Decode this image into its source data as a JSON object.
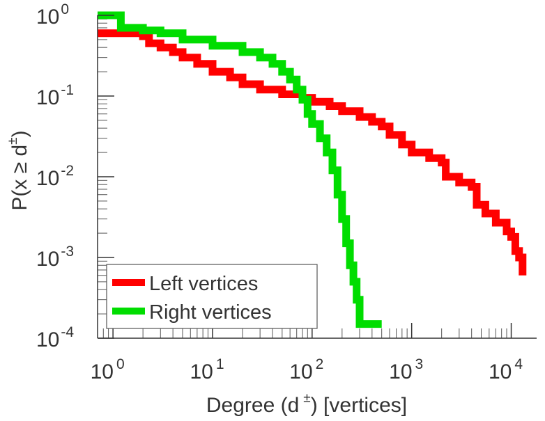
{
  "chart_data": {
    "type": "line",
    "xscale": "log",
    "yscale": "log",
    "xlim": [
      0.7,
      18000
    ],
    "ylim": [
      0.0001,
      1
    ],
    "x_ticks": [
      {
        "base": "10",
        "exp": "0"
      },
      {
        "base": "10",
        "exp": "1"
      },
      {
        "base": "10",
        "exp": "2"
      },
      {
        "base": "10",
        "exp": "3"
      },
      {
        "base": "10",
        "exp": "4"
      }
    ],
    "y_ticks": [
      {
        "base": "10",
        "exp": "0"
      },
      {
        "base": "10",
        "exp": "-1"
      },
      {
        "base": "10",
        "exp": "-2"
      },
      {
        "base": "10",
        "exp": "-3"
      },
      {
        "base": "10",
        "exp": "-4"
      }
    ],
    "xlabel": {
      "pre": "Degree (d",
      "sup": "±",
      "post": ") [vertices]"
    },
    "ylabel": {
      "pre": "P(x ≥ d",
      "sup": "±",
      "post": ")"
    },
    "legend_position": "bottom-left",
    "series": [
      {
        "name": "Left vertices",
        "color": "#ff0000",
        "points": [
          [
            0.7,
            0.6
          ],
          [
            1.3,
            0.6
          ],
          [
            2,
            0.55
          ],
          [
            2.3,
            0.45
          ],
          [
            3,
            0.4
          ],
          [
            4,
            0.35
          ],
          [
            5,
            0.3
          ],
          [
            7,
            0.25
          ],
          [
            10,
            0.2
          ],
          [
            15,
            0.17
          ],
          [
            20,
            0.14
          ],
          [
            30,
            0.12
          ],
          [
            50,
            0.105
          ],
          [
            80,
            0.095
          ],
          [
            100,
            0.085
          ],
          [
            150,
            0.075
          ],
          [
            200,
            0.065
          ],
          [
            300,
            0.055
          ],
          [
            400,
            0.048
          ],
          [
            500,
            0.042
          ],
          [
            600,
            0.033
          ],
          [
            800,
            0.025
          ],
          [
            1000,
            0.02
          ],
          [
            1500,
            0.017
          ],
          [
            2000,
            0.015
          ],
          [
            2200,
            0.01
          ],
          [
            3000,
            0.0085
          ],
          [
            4000,
            0.0075
          ],
          [
            4500,
            0.0045
          ],
          [
            5500,
            0.0035
          ],
          [
            7000,
            0.0027
          ],
          [
            9000,
            0.0021
          ],
          [
            10000,
            0.0018
          ],
          [
            11000,
            0.0012
          ],
          [
            12000,
            0.001
          ],
          [
            13000,
            0.0006
          ]
        ]
      },
      {
        "name": "Right vertices",
        "color": "#00dd00",
        "points": [
          [
            0.7,
            1.0
          ],
          [
            1.1,
            1.0
          ],
          [
            1.2,
            0.7
          ],
          [
            2,
            0.65
          ],
          [
            3,
            0.6
          ],
          [
            5,
            0.5
          ],
          [
            10,
            0.42
          ],
          [
            20,
            0.35
          ],
          [
            30,
            0.3
          ],
          [
            40,
            0.25
          ],
          [
            50,
            0.2
          ],
          [
            60,
            0.16
          ],
          [
            70,
            0.12
          ],
          [
            80,
            0.09
          ],
          [
            90,
            0.06
          ],
          [
            100,
            0.045
          ],
          [
            120,
            0.03
          ],
          [
            140,
            0.02
          ],
          [
            160,
            0.012
          ],
          [
            180,
            0.006
          ],
          [
            200,
            0.003
          ],
          [
            220,
            0.0015
          ],
          [
            240,
            0.0008
          ],
          [
            260,
            0.0005
          ],
          [
            280,
            0.0003
          ],
          [
            300,
            0.00015
          ],
          [
            500,
            0.00015
          ]
        ]
      }
    ]
  }
}
